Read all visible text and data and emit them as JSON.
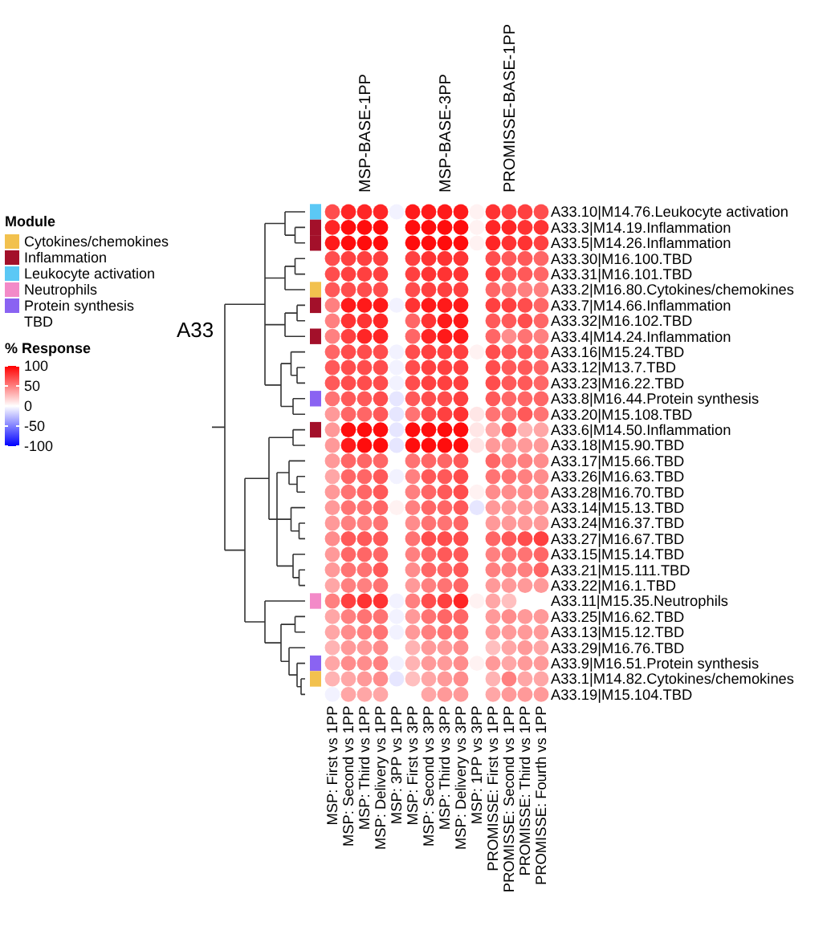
{
  "chart_data": [
    {
      "type": "heatmap",
      "legend_title": "% Response",
      "categories": [
        "MSP: First vs 1PP",
        "MSP: Second vs 1PP",
        "MSP: Third vs 1PP",
        "MSP: Delivery vs 1PP",
        "MSP: 3PP vs 1PP",
        "MSP: First vs 3PP",
        "MSP: Second vs 3PP",
        "MSP: Third vs 3PP",
        "MSP: Delivery vs 3PP",
        "MSP: 1PP vs 3PP",
        "PROMISSE: First vs 1PP",
        "PROMISSE: Second vs 1PP",
        "PROMISSE: Third vs 1PP",
        "PROMISSE: Fourth vs 1PP"
      ],
      "y_categories": [
        "A33.10|M14.76.Leukocyte activation",
        "A33.3|M14.19.Inflammation",
        "A33.5|M14.26.Inflammation",
        "A33.30|M16.100.TBD",
        "A33.31|M16.101.TBD",
        "A33.2|M16.80.Cytokines/chemokines",
        "A33.7|M14.66.Inflammation",
        "A33.32|M16.102.TBD",
        "A33.4|M14.24.Inflammation",
        "A33.16|M15.24.TBD",
        "A33.12|M13.7.TBD",
        "A33.23|M16.22.TBD",
        "A33.8|M16.44.Protein synthesis",
        "A33.20|M15.108.TBD",
        "A33.6|M14.50.Inflammation",
        "A33.18|M15.90.TBD",
        "A33.17|M15.66.TBD",
        "A33.26|M16.63.TBD",
        "A33.28|M16.70.TBD",
        "A33.14|M15.13.TBD",
        "A33.24|M16.37.TBD",
        "A33.27|M16.67.TBD",
        "A33.15|M15.14.TBD",
        "A33.21|M15.111.TBD",
        "A33.22|M16.1.TBD",
        "A33.11|M15.35.Neutrophils",
        "A33.25|M16.62.TBD",
        "A33.13|M15.12.TBD",
        "A33.29|M16.76.TBD",
        "A33.9|M16.51.Protein synthesis",
        "A33.1|M14.82.Cytokines/chemokines",
        "A33.19|M15.104.TBD"
      ],
      "cells": [
        [
          70,
          85,
          85,
          85,
          -5,
          90,
          90,
          90,
          90,
          5,
          80,
          75,
          75,
          70
        ],
        [
          85,
          95,
          95,
          95,
          0,
          95,
          95,
          95,
          95,
          5,
          85,
          85,
          80,
          80
        ],
        [
          90,
          95,
          95,
          95,
          0,
          95,
          95,
          95,
          95,
          5,
          85,
          80,
          80,
          75
        ],
        [
          70,
          75,
          75,
          75,
          0,
          75,
          80,
          80,
          80,
          0,
          70,
          65,
          65,
          60
        ],
        [
          70,
          75,
          75,
          75,
          0,
          75,
          80,
          80,
          80,
          0,
          75,
          65,
          65,
          60
        ],
        [
          65,
          70,
          70,
          70,
          0,
          70,
          75,
          75,
          75,
          0,
          60,
          55,
          50,
          50
        ],
        [
          50,
          90,
          90,
          90,
          -5,
          80,
          90,
          90,
          90,
          0,
          75,
          75,
          70,
          60
        ],
        [
          50,
          80,
          80,
          85,
          0,
          60,
          80,
          90,
          90,
          0,
          65,
          65,
          70,
          60
        ],
        [
          50,
          75,
          85,
          85,
          0,
          60,
          85,
          90,
          90,
          0,
          60,
          45,
          55,
          50
        ],
        [
          60,
          70,
          70,
          70,
          -5,
          70,
          75,
          75,
          75,
          5,
          70,
          65,
          65,
          60
        ],
        [
          65,
          70,
          70,
          70,
          -5,
          70,
          75,
          75,
          75,
          0,
          70,
          65,
          65,
          60
        ],
        [
          65,
          70,
          70,
          70,
          -5,
          70,
          75,
          75,
          75,
          0,
          70,
          65,
          65,
          60
        ],
        [
          55,
          65,
          65,
          70,
          -10,
          65,
          70,
          70,
          75,
          0,
          65,
          60,
          60,
          60
        ],
        [
          40,
          60,
          60,
          65,
          -10,
          55,
          70,
          75,
          80,
          10,
          55,
          55,
          65,
          55
        ],
        [
          40,
          95,
          95,
          95,
          -10,
          95,
          95,
          95,
          95,
          10,
          35,
          65,
          30,
          35
        ],
        [
          40,
          90,
          95,
          95,
          -10,
          95,
          95,
          95,
          95,
          10,
          40,
          40,
          40,
          40
        ],
        [
          40,
          60,
          60,
          60,
          0,
          55,
          60,
          60,
          65,
          0,
          60,
          50,
          50,
          45
        ],
        [
          35,
          60,
          60,
          65,
          -5,
          50,
          65,
          65,
          70,
          0,
          55,
          55,
          50,
          45
        ],
        [
          40,
          55,
          60,
          65,
          0,
          50,
          60,
          65,
          70,
          5,
          45,
          45,
          45,
          45
        ],
        [
          40,
          55,
          55,
          60,
          5,
          50,
          60,
          60,
          65,
          -10,
          40,
          40,
          40,
          40
        ],
        [
          40,
          50,
          50,
          55,
          0,
          45,
          55,
          55,
          60,
          0,
          40,
          40,
          40,
          40
        ],
        [
          45,
          65,
          65,
          65,
          0,
          55,
          70,
          70,
          70,
          0,
          60,
          65,
          70,
          75
        ],
        [
          40,
          60,
          60,
          60,
          0,
          50,
          60,
          65,
          65,
          0,
          50,
          55,
          55,
          60
        ],
        [
          40,
          55,
          55,
          65,
          0,
          45,
          60,
          60,
          65,
          0,
          50,
          50,
          50,
          60
        ],
        [
          35,
          50,
          50,
          55,
          0,
          40,
          50,
          55,
          60,
          0,
          40,
          40,
          40,
          40
        ],
        [
          50,
          75,
          80,
          80,
          -5,
          50,
          70,
          75,
          85,
          5,
          35,
          25,
          0,
          0
        ],
        [
          35,
          50,
          55,
          55,
          -5,
          40,
          55,
          60,
          60,
          0,
          40,
          45,
          40,
          40
        ],
        [
          35,
          45,
          50,
          55,
          -5,
          40,
          50,
          55,
          55,
          0,
          40,
          40,
          40,
          40
        ],
        [
          30,
          40,
          40,
          45,
          0,
          30,
          40,
          40,
          45,
          0,
          25,
          35,
          40,
          35
        ],
        [
          35,
          45,
          45,
          50,
          -5,
          30,
          40,
          40,
          45,
          5,
          40,
          35,
          40,
          40
        ],
        [
          30,
          35,
          40,
          45,
          -10,
          25,
          35,
          40,
          45,
          0,
          30,
          50,
          35,
          35
        ],
        [
          -5,
          35,
          35,
          35,
          0,
          0,
          35,
          40,
          40,
          0,
          35,
          40,
          40,
          40
        ]
      ],
      "clim": [
        -100,
        100
      ],
      "cticks": [
        100,
        50,
        0,
        -50,
        -100
      ],
      "annotations": [
        "MSP-BASE-1PP",
        "MSP-BASE-3PP",
        "PROMISSE-BASE-1PP",
        "A33"
      ]
    },
    {
      "type": "other",
      "legend_title": "Module",
      "categories": [
        "Cytokines/chemokines",
        "Inflammation",
        "Leukocyte activation",
        "Neutrophils",
        "Protein synthesis",
        "TBD"
      ],
      "colors": [
        "#f2c14e",
        "#a3102a",
        "#5bc8f5",
        "#f38ac8",
        "#8a63f2",
        "#ffffff"
      ]
    },
    {
      "type": "other",
      "colors": [
        "#5bc8f5",
        "#a3102a",
        "#a3102a",
        null,
        null,
        "#f2c14e",
        "#a3102a",
        null,
        "#a3102a",
        null,
        null,
        null,
        "#8a63f2",
        null,
        "#a3102a",
        null,
        null,
        null,
        null,
        null,
        null,
        null,
        null,
        null,
        null,
        "#f38ac8",
        null,
        null,
        null,
        "#8a63f2",
        "#f2c14e",
        null
      ]
    }
  ]
}
